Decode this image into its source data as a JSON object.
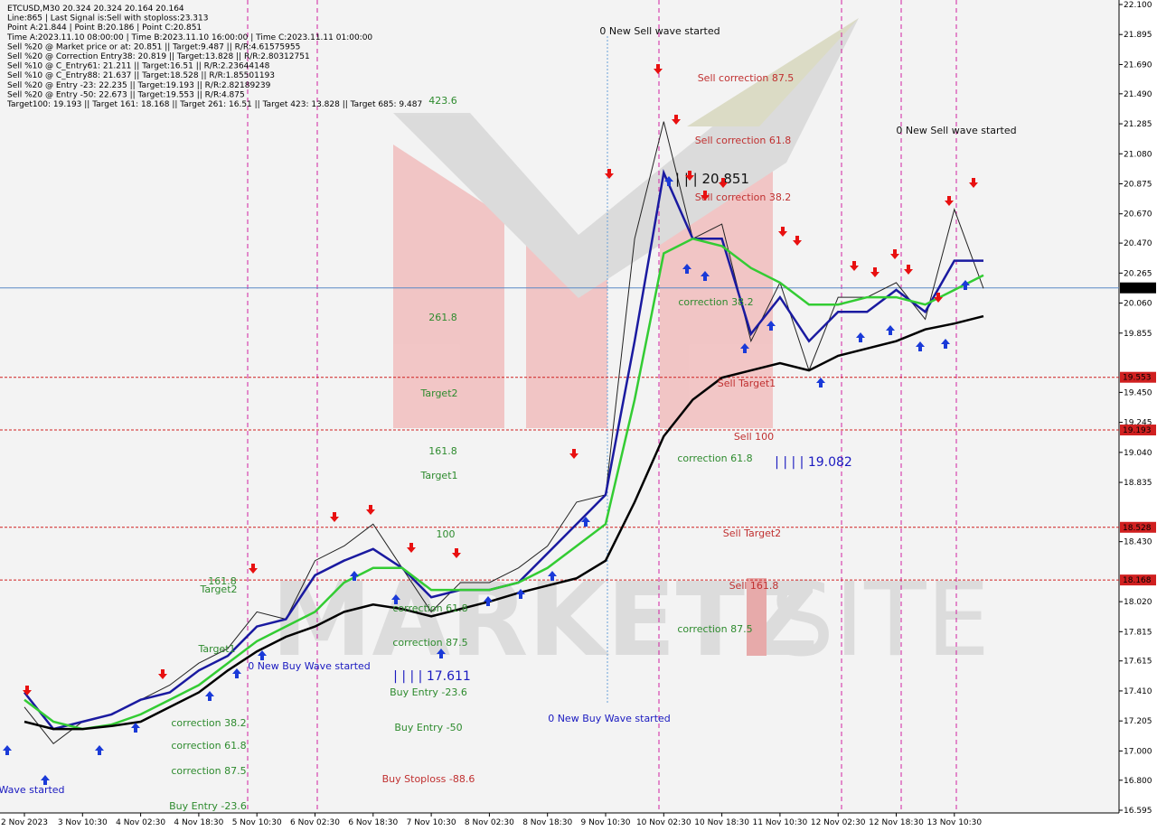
{
  "chart_data": {
    "type": "line",
    "info_lines": [
      "ETCUSD,M30  20.324 20.324 20.164 20.164",
      "Line:865 | Last Signal is:Sell with stoploss:23.313",
      "Point A:21.844 | Point B:20.186 | Point C:20.851",
      "Time A:2023.11.10 08:00:00 | Time B:2023.11.10 16:00:00 | Time C:2023.11.11 01:00:00",
      "Sell %20 @ Market price or at: 20.851 || Target:9.487 || R/R:4.61575955",
      "Sell %20 @ Correction Entry38: 20.819 || Target:13.828 || R/R:2.80312751",
      "Sell %10 @ C_Entry61: 21.211 || Target:16.51 || R/R:2.23644148",
      "Sell %10 @ C_Entry88: 21.637 || Target:18.528 || R/R:1.85501193",
      "Sell %20 @ Entry -23: 22.235 || Target:19.193 || R/R:2.82189239",
      "Sell %20 @ Entry -50: 22.673 || Target:19.553 || R/R:4.875",
      "Target100: 19.193 || Target 161: 18.168 || Target 261: 16.51 || Target 423: 13.828 || Target 685: 9.487"
    ],
    "watermark": [
      "MARKETZ",
      "SITE"
    ],
    "categories": [
      "2 Nov 2023",
      null,
      "3 Nov 10:30",
      null,
      "4 Nov 02:30",
      null,
      "4 Nov 18:30",
      null,
      "5 Nov 10:30",
      null,
      "6 Nov 02:30",
      null,
      "6 Nov 18:30",
      null,
      "7 Nov 10:30",
      null,
      "8 Nov 02:30",
      null,
      "8 Nov 18:30",
      null,
      "9 Nov 10:30",
      null,
      "10 Nov 02:30",
      null,
      "10 Nov 18:30",
      null,
      "11 Nov 10:30",
      null,
      "12 Nov 02:30",
      null,
      "12 Nov 18:30",
      null,
      "13 Nov 10:30",
      null
    ],
    "series": [
      {
        "color": "#222222",
        "values": [
          17.3,
          17.05,
          17.2,
          17.25,
          17.35,
          17.45,
          17.6,
          17.7,
          17.95,
          17.9,
          18.3,
          18.4,
          18.55,
          18.25,
          17.95,
          18.15,
          18.15,
          18.25,
          18.4,
          18.7,
          18.75,
          20.5,
          21.3,
          20.5,
          20.6,
          19.8,
          20.2,
          19.6,
          20.1,
          20.1,
          20.2,
          19.95,
          20.7,
          20.16
        ]
      },
      {
        "color": "#1a1aa0",
        "values": [
          17.4,
          17.15,
          17.2,
          17.25,
          17.35,
          17.4,
          17.55,
          17.65,
          17.85,
          17.9,
          18.2,
          18.3,
          18.38,
          18.25,
          18.05,
          18.1,
          18.1,
          18.15,
          18.35,
          18.55,
          18.75,
          19.8,
          20.95,
          20.5,
          20.5,
          19.85,
          20.1,
          19.8,
          20.0,
          20.0,
          20.15,
          20.0,
          20.35,
          20.35
        ]
      },
      {
        "color": "#33cc33",
        "values": [
          17.35,
          17.2,
          17.15,
          17.18,
          17.25,
          17.35,
          17.45,
          17.6,
          17.75,
          17.85,
          17.95,
          18.15,
          18.25,
          18.25,
          18.1,
          18.1,
          18.1,
          18.15,
          18.25,
          18.4,
          18.55,
          19.4,
          20.4,
          20.5,
          20.45,
          20.3,
          20.2,
          20.05,
          20.05,
          20.1,
          20.1,
          20.05,
          20.15,
          20.25
        ]
      },
      {
        "color": "#000000",
        "values": [
          17.2,
          17.15,
          17.15,
          17.17,
          17.2,
          17.3,
          17.4,
          17.55,
          17.68,
          17.78,
          17.85,
          17.95,
          18.0,
          17.97,
          17.92,
          17.97,
          18.02,
          18.08,
          18.13,
          18.18,
          18.3,
          18.7,
          19.15,
          19.4,
          19.55,
          19.6,
          19.65,
          19.6,
          19.7,
          19.75,
          19.8,
          19.88,
          19.92,
          19.97
        ]
      }
    ],
    "ylim": [
      16.595,
      22.1
    ],
    "yticks": [
      {
        "value": 22.1,
        "label": "22.100"
      },
      21.895,
      {
        "value": 21.69,
        "label": "21.690"
      },
      {
        "value": 21.49,
        "label": "21.490"
      },
      21.285,
      {
        "value": 21.08,
        "label": "21.080"
      },
      20.875,
      {
        "value": 20.67,
        "label": "20.670"
      },
      {
        "value": 20.47,
        "label": "20.470"
      },
      20.265,
      {
        "value": 20.06,
        "label": "20.060"
      },
      19.855,
      {
        "value": 19.45,
        "label": "19.450"
      },
      19.245,
      {
        "value": 19.04,
        "label": "19.040"
      },
      18.835,
      {
        "value": 18.43,
        "label": "18.430"
      },
      {
        "value": 18.02,
        "label": "18.020"
      },
      17.815,
      17.615,
      {
        "value": 17.41,
        "label": "17.410"
      },
      17.205,
      {
        "value": 17.0,
        "label": "17.000"
      },
      {
        "value": 16.8,
        "label": "16.800"
      },
      16.595
    ],
    "levels": [
      19.553,
      19.193,
      18.528,
      18.168
    ],
    "level_color": "#d02020",
    "current_price": 20.164,
    "current_color": "#5a8ac6",
    "annotations": [
      "0 New Sell wave started",
      "Sell correction 87.5",
      "423.6",
      "Sell correction 61.8",
      "0 New Sell wave started",
      "| | | 20.851",
      "Sell correction 38.2",
      "correction 38.2",
      "261.8",
      "Sell Target1",
      "Target2",
      "Sell 100",
      "161.8",
      "correction 61.8",
      "| | | | 19.082",
      "Target1",
      "100",
      "Sell Target2",
      "Sell 161.8",
      "161.8",
      "Target2",
      "correction 87.5",
      "correction 61.8",
      "correction 87.5",
      "0 New Buy Wave started",
      "| | | | 17.611",
      "Buy Entry -23.6",
      "Buy Entry -50",
      "0 New Buy Wave started",
      "correction 38.2",
      "correction 61.8",
      "correction 87.5",
      "Buy Stoploss -88.6",
      "Buy Entry -23.6",
      "Wave started",
      "Target1"
    ]
  }
}
